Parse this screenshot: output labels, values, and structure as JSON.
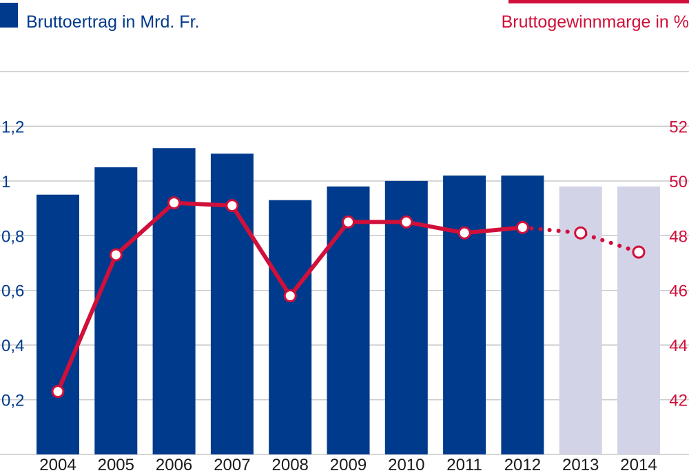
{
  "chart_data": {
    "type": "bar",
    "categories": [
      "2004",
      "2005",
      "2006",
      "2007",
      "2008",
      "2009",
      "2010",
      "2011",
      "2012",
      "2013",
      "2014"
    ],
    "series": [
      {
        "name": "Bruttoertrag in Mrd. Fr.",
        "type": "bar",
        "axis": "left",
        "values": [
          0.95,
          1.05,
          1.12,
          1.1,
          0.93,
          0.98,
          1.0,
          1.02,
          1.02,
          0.98,
          0.98
        ],
        "estimate_from_index": 9
      },
      {
        "name": "Bruttogewinnmarge in %",
        "type": "line",
        "axis": "right",
        "values": [
          42.3,
          47.3,
          49.2,
          49.1,
          45.8,
          48.5,
          48.5,
          48.1,
          48.3,
          48.1,
          47.4
        ],
        "estimate_from_index": 8
      }
    ],
    "y_left": {
      "min": 0,
      "max": 1.4,
      "ticks": [
        "0,2",
        "0,4",
        "0,6",
        "0,8",
        "1",
        "1,2"
      ],
      "tick_values": [
        0.2,
        0.4,
        0.6,
        0.8,
        1.0,
        1.2
      ]
    },
    "y_right": {
      "min": 40,
      "max": 54,
      "ticks": [
        "42",
        "44",
        "46",
        "48",
        "50",
        "52"
      ],
      "tick_values": [
        42,
        44,
        46,
        48,
        50,
        52
      ]
    },
    "grid": true,
    "legend": [
      {
        "label": "Bruttoertrag in Mrd. Fr.",
        "placement": "top-left"
      },
      {
        "label": "Bruttogewinnmarge in %",
        "placement": "top-right"
      }
    ],
    "colors": {
      "bar": "#003a8c",
      "bar_estimate": "#d3d3e8",
      "line": "#d0103a",
      "grid": "#c8c8c8",
      "left_axis_text": "#003a8c",
      "right_axis_text": "#d0103a",
      "x_axis_text": "#1a1a1a"
    }
  }
}
